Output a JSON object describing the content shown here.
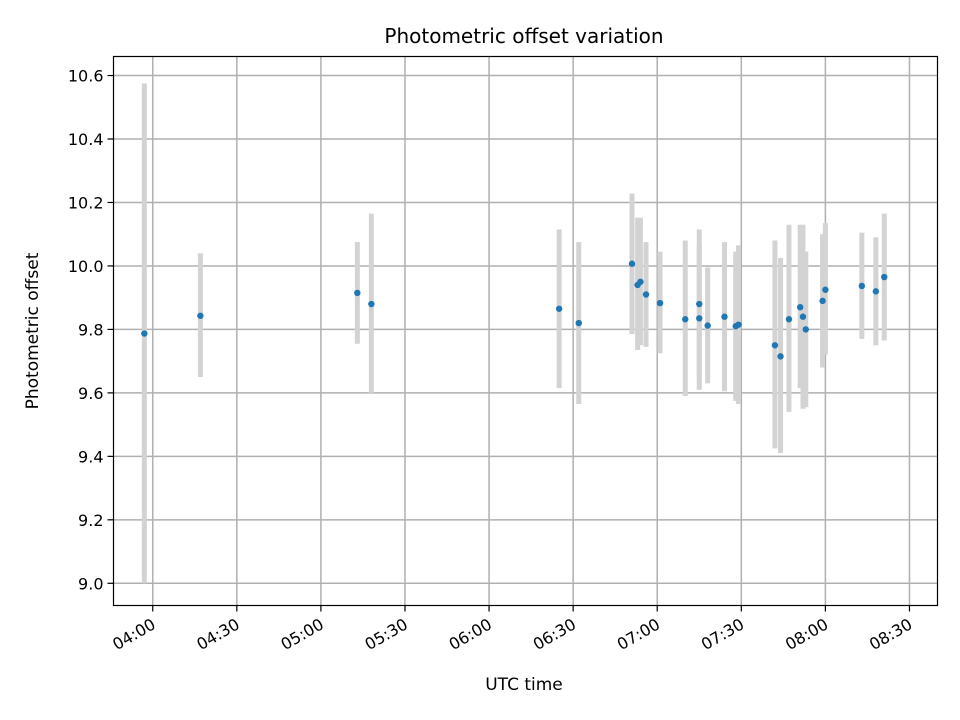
{
  "chart_data": {
    "type": "scatter",
    "title": "Photometric offset variation",
    "xlabel": "UTC time",
    "ylabel": "Photometric offset",
    "x_ticks": [
      "04:00",
      "04:30",
      "05:00",
      "05:30",
      "06:00",
      "06:30",
      "07:00",
      "07:30",
      "08:00",
      "08:30"
    ],
    "y_ticks": [
      "9.0",
      "9.2",
      "9.4",
      "9.6",
      "9.8",
      "10.0",
      "10.2",
      "10.4",
      "10.6"
    ],
    "xlim": [
      "03:46",
      "08:40"
    ],
    "ylim": [
      8.93,
      10.66
    ],
    "grid": true,
    "colors": {
      "point": "#1f77b4",
      "errorbar": "#d3d3d3",
      "grid": "#b0b0b0"
    },
    "series": [
      {
        "points": [
          {
            "time": "03:57",
            "y": 9.787,
            "ylo": 9.0,
            "yhi": 10.575
          },
          {
            "time": "04:17",
            "y": 9.843,
            "ylo": 9.65,
            "yhi": 10.04
          },
          {
            "time": "05:13",
            "y": 9.915,
            "ylo": 9.755,
            "yhi": 10.075
          },
          {
            "time": "05:18",
            "y": 9.88,
            "ylo": 9.6,
            "yhi": 10.165
          },
          {
            "time": "06:25",
            "y": 9.865,
            "ylo": 9.615,
            "yhi": 10.115
          },
          {
            "time": "06:32",
            "y": 9.82,
            "ylo": 9.565,
            "yhi": 10.075
          },
          {
            "time": "06:51",
            "y": 10.007,
            "ylo": 9.785,
            "yhi": 10.228
          },
          {
            "time": "06:53",
            "y": 9.94,
            "ylo": 9.735,
            "yhi": 10.152
          },
          {
            "time": "06:54",
            "y": 9.95,
            "ylo": 9.75,
            "yhi": 10.152
          },
          {
            "time": "06:56",
            "y": 9.91,
            "ylo": 9.745,
            "yhi": 10.075
          },
          {
            "time": "07:01",
            "y": 9.883,
            "ylo": 9.725,
            "yhi": 10.045
          },
          {
            "time": "07:10",
            "y": 9.832,
            "ylo": 9.59,
            "yhi": 10.08
          },
          {
            "time": "07:15",
            "y": 9.88,
            "ylo": 9.65,
            "yhi": 10.115
          },
          {
            "time": "07:15",
            "y": 9.835,
            "ylo": 9.61,
            "yhi": 10.065
          },
          {
            "time": "07:18",
            "y": 9.812,
            "ylo": 9.63,
            "yhi": 9.995
          },
          {
            "time": "07:24",
            "y": 9.84,
            "ylo": 9.605,
            "yhi": 10.075
          },
          {
            "time": "07:28",
            "y": 9.81,
            "ylo": 9.575,
            "yhi": 10.045
          },
          {
            "time": "07:29",
            "y": 9.815,
            "ylo": 9.565,
            "yhi": 10.065
          },
          {
            "time": "07:42",
            "y": 9.75,
            "ylo": 9.425,
            "yhi": 10.08
          },
          {
            "time": "07:44",
            "y": 9.715,
            "ylo": 9.41,
            "yhi": 10.025
          },
          {
            "time": "07:47",
            "y": 9.832,
            "ylo": 9.54,
            "yhi": 10.13
          },
          {
            "time": "07:51",
            "y": 9.87,
            "ylo": 9.615,
            "yhi": 10.13
          },
          {
            "time": "07:52",
            "y": 9.84,
            "ylo": 9.55,
            "yhi": 10.13
          },
          {
            "time": "07:53",
            "y": 9.8,
            "ylo": 9.555,
            "yhi": 10.045
          },
          {
            "time": "07:59",
            "y": 9.89,
            "ylo": 9.68,
            "yhi": 10.1
          },
          {
            "time": "08:00",
            "y": 9.925,
            "ylo": 9.72,
            "yhi": 10.135
          },
          {
            "time": "08:13",
            "y": 9.937,
            "ylo": 9.77,
            "yhi": 10.105
          },
          {
            "time": "08:18",
            "y": 9.92,
            "ylo": 9.75,
            "yhi": 10.09
          },
          {
            "time": "08:21",
            "y": 9.965,
            "ylo": 9.765,
            "yhi": 10.165
          }
        ]
      }
    ]
  }
}
